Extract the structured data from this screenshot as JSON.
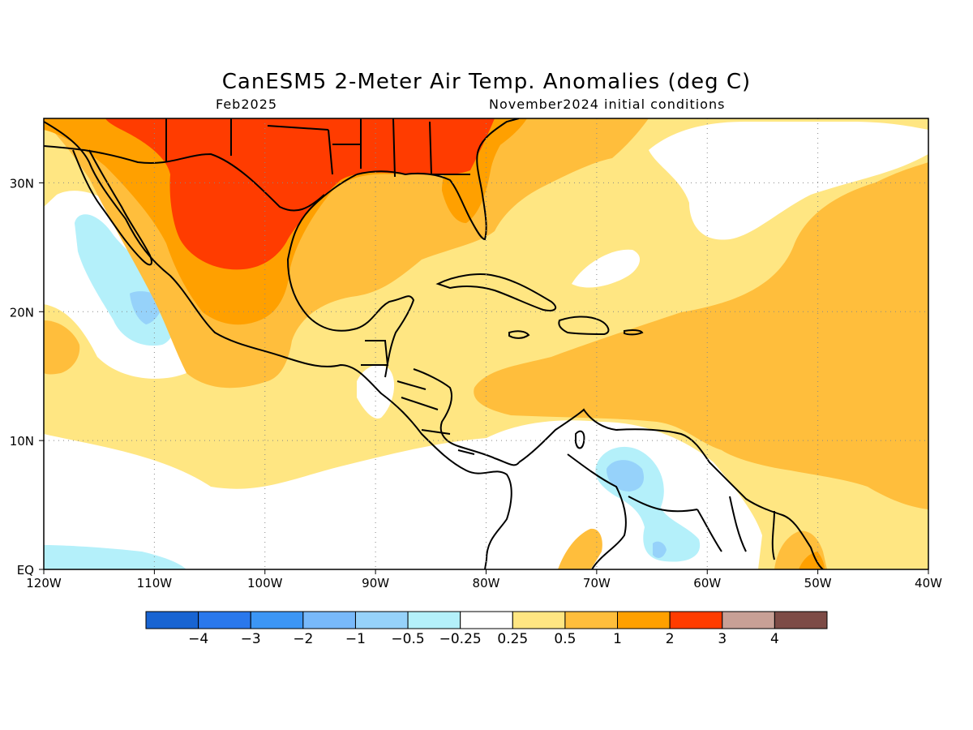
{
  "title": "CanESM5 2-Meter Air Temp. Anomalies (deg C)",
  "subtitle_left": "Feb2025",
  "subtitle_right": "November2024 initial conditions",
  "map": {
    "lon_range": [
      -120,
      -40
    ],
    "lat_range": [
      0,
      35
    ],
    "lon_ticks": [
      {
        "value": -120,
        "label": "120W"
      },
      {
        "value": -110,
        "label": "110W"
      },
      {
        "value": -100,
        "label": "100W"
      },
      {
        "value": -90,
        "label": "90W"
      },
      {
        "value": -80,
        "label": "80W"
      },
      {
        "value": -70,
        "label": "70W"
      },
      {
        "value": -60,
        "label": "60W"
      },
      {
        "value": -50,
        "label": "50W"
      },
      {
        "value": -40,
        "label": "40W"
      }
    ],
    "lat_ticks": [
      {
        "value": 0,
        "label": "EQ"
      },
      {
        "value": 10,
        "label": "10N"
      },
      {
        "value": 20,
        "label": "20N"
      },
      {
        "value": 30,
        "label": "30N"
      }
    ],
    "grid": "dotted"
  },
  "colorbar": {
    "colors": [
      "#1864d2",
      "#2a78ec",
      "#3c96f5",
      "#78b9fa",
      "#96d2fa",
      "#b4f0fa",
      "#ffffff",
      "#ffe682",
      "#ffbe3c",
      "#ffa000",
      "#ff3c00",
      "#c8a096",
      "#7d4b46"
    ],
    "labels": [
      "-4",
      "-3",
      "-2",
      "-1",
      "-0.5",
      "-0.25",
      "0.25",
      "0.5",
      "1",
      "2",
      "3",
      "4"
    ]
  }
}
